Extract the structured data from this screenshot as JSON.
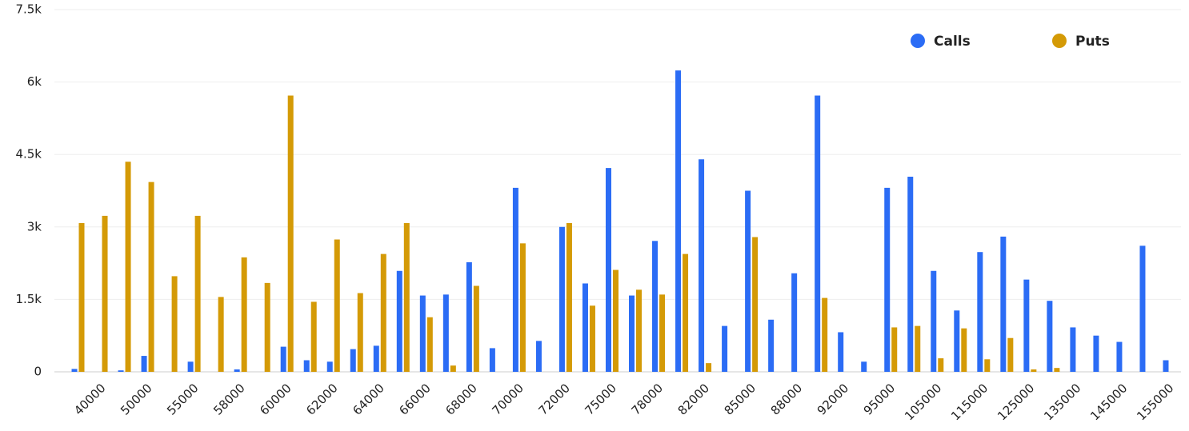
{
  "chart_data": {
    "type": "bar",
    "categories": [
      null,
      "40000",
      null,
      "50000",
      null,
      "55000",
      null,
      "58000",
      null,
      "60000",
      null,
      "62000",
      null,
      "64000",
      null,
      "66000",
      null,
      "68000",
      null,
      "70000",
      null,
      "72000",
      null,
      "75000",
      null,
      "78000",
      null,
      "82000",
      null,
      "85000",
      null,
      "88000",
      null,
      "92000",
      null,
      "95000",
      null,
      "105000",
      null,
      "115000",
      null,
      "125000",
      null,
      "135000",
      null,
      "145000",
      null,
      "155000"
    ],
    "series": [
      {
        "name": "Calls",
        "color": "#2b6cf5",
        "values": [
          60,
          0,
          30,
          330,
          0,
          210,
          0,
          50,
          0,
          520,
          240,
          210,
          470,
          540,
          2090,
          1580,
          1600,
          2270,
          490,
          3810,
          640,
          3000,
          1830,
          4220,
          1580,
          2710,
          6240,
          4400,
          950,
          3750,
          1080,
          2040,
          5720,
          820,
          210,
          3810,
          4040,
          2090,
          1270,
          2480,
          2800,
          1910,
          1470,
          920,
          750,
          620,
          2610,
          240
        ]
      },
      {
        "name": "Puts",
        "color": "#d49a06",
        "values": [
          3080,
          3230,
          4350,
          3930,
          1980,
          3230,
          1550,
          2370,
          1840,
          5720,
          1450,
          2740,
          1630,
          2440,
          3080,
          1130,
          130,
          1780,
          0,
          2660,
          0,
          3080,
          1370,
          2110,
          1700,
          1600,
          2440,
          180,
          0,
          2790,
          0,
          0,
          1530,
          0,
          0,
          920,
          950,
          280,
          900,
          260,
          700,
          50,
          80,
          0,
          0,
          0,
          0,
          0
        ]
      }
    ],
    "ylim": [
      0,
      7500
    ],
    "yticks": [
      0,
      {
        "value": 1500,
        "label": "1.5k"
      },
      {
        "value": 3000,
        "label": "3k"
      },
      {
        "value": 4500,
        "label": "4.5k"
      },
      {
        "value": 6000,
        "label": "6k"
      },
      {
        "value": 7500,
        "label": "7.5k"
      }
    ],
    "grid": true,
    "legend": "top-right"
  }
}
